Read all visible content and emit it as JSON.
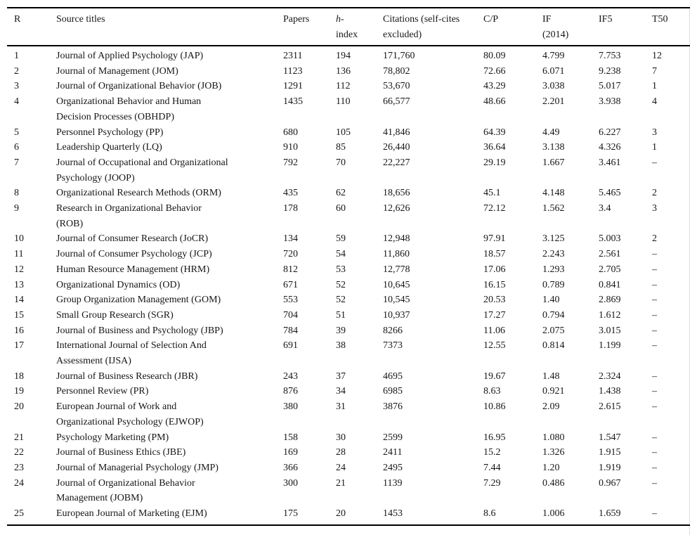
{
  "colors": {
    "background": "#ffffff",
    "text": "#161616",
    "rule": "#000000",
    "page_edge_line": "#dedede"
  },
  "table": {
    "columns": {
      "r": "R",
      "source": "Source titles",
      "papers": "Papers",
      "h_italic": "h",
      "h_hyphen": "-",
      "h_line2": "index",
      "citations": "Citations (self-cites\nexcluded)",
      "cp": "C/P",
      "if": "IF\n(2014)",
      "if5": "IF5",
      "t50": "T50"
    },
    "rows": [
      {
        "r": "1",
        "title": "Journal of Applied Psychology (JAP)",
        "papers": "2311",
        "h": "194",
        "citations": "171,760",
        "cp": "80.09",
        "if": "4.799",
        "if5": "7.753",
        "t50": "12"
      },
      {
        "r": "2",
        "title": "Journal of Management (JOM)",
        "papers": "1123",
        "h": "136",
        "citations": "78,802",
        "cp": "72.66",
        "if": "6.071",
        "if5": "9.238",
        "t50": "7"
      },
      {
        "r": "3",
        "title": "Journal of Organizational Behavior (JOB)",
        "papers": "1291",
        "h": "112",
        "citations": "53,670",
        "cp": "43.29",
        "if": "3.038",
        "if5": "5.017",
        "t50": "1"
      },
      {
        "r": "4",
        "title": "Organizational Behavior and Human\nDecision Processes (OBHDP)",
        "papers": "1435",
        "h": "110",
        "citations": "66,577",
        "cp": "48.66",
        "if": "2.201",
        "if5": "3.938",
        "t50": "4"
      },
      {
        "r": "5",
        "title": "Personnel Psychology (PP)",
        "papers": "680",
        "h": "105",
        "citations": "41,846",
        "cp": "64.39",
        "if": "4.49",
        "if5": "6.227",
        "t50": "3"
      },
      {
        "r": "6",
        "title": "Leadership Quarterly (LQ)",
        "papers": "910",
        "h": "85",
        "citations": "26,440",
        "cp": "36.64",
        "if": "3.138",
        "if5": "4.326",
        "t50": "1"
      },
      {
        "r": "7",
        "title": "Journal of Occupational and Organizational\nPsychology (JOOP)",
        "papers": "792",
        "h": "70",
        "citations": "22,227",
        "cp": "29.19",
        "if": "1.667",
        "if5": "3.461",
        "t50": "–"
      },
      {
        "r": "8",
        "title": "Organizational Research Methods (ORM)",
        "papers": "435",
        "h": "62",
        "citations": "18,656",
        "cp": "45.1",
        "if": "4.148",
        "if5": "5.465",
        "t50": "2"
      },
      {
        "r": "9",
        "title": "Research in Organizational Behavior\n(ROB)",
        "papers": "178",
        "h": "60",
        "citations": "12,626",
        "cp": "72.12",
        "if": "1.562",
        "if5": "3.4",
        "t50": "3"
      },
      {
        "r": "10",
        "title": "Journal of Consumer Research (JoCR)",
        "papers": "134",
        "h": "59",
        "citations": "12,948",
        "cp": "97.91",
        "if": "3.125",
        "if5": "5.003",
        "t50": "2"
      },
      {
        "r": "11",
        "title": "Journal of Consumer Psychology (JCP)",
        "papers": "720",
        "h": "54",
        "citations": "11,860",
        "cp": "18.57",
        "if": "2.243",
        "if5": "2.561",
        "t50": "–"
      },
      {
        "r": "12",
        "title": "Human Resource Management (HRM)",
        "papers": "812",
        "h": "53",
        "citations": "12,778",
        "cp": "17.06",
        "if": "1.293",
        "if5": "2.705",
        "t50": "–"
      },
      {
        "r": "13",
        "title": "Organizational Dynamics (OD)",
        "papers": "671",
        "h": "52",
        "citations": "10,645",
        "cp": "16.15",
        "if": "0.789",
        "if5": "0.841",
        "t50": "–"
      },
      {
        "r": "14",
        "title": "Group Organization Management (GOM)",
        "papers": "553",
        "h": "52",
        "citations": "10,545",
        "cp": "20.53",
        "if": "1.40",
        "if5": "2.869",
        "t50": "–"
      },
      {
        "r": "15",
        "title": "Small Group Research (SGR)",
        "papers": "704",
        "h": "51",
        "citations": "10,937",
        "cp": "17.27",
        "if": "0.794",
        "if5": "1.612",
        "t50": "–"
      },
      {
        "r": "16",
        "title": "Journal of Business and Psychology (JBP)",
        "papers": "784",
        "h": "39",
        "citations": "8266",
        "cp": "11.06",
        "if": "2.075",
        "if5": "3.015",
        "t50": "–"
      },
      {
        "r": "17",
        "title": "International Journal of Selection And\nAssessment (IJSA)",
        "papers": "691",
        "h": "38",
        "citations": "7373",
        "cp": "12.55",
        "if": "0.814",
        "if5": "1.199",
        "t50": "–"
      },
      {
        "r": "18",
        "title": "Journal of Business Research (JBR)",
        "papers": "243",
        "h": "37",
        "citations": "4695",
        "cp": "19.67",
        "if": "1.48",
        "if5": "2.324",
        "t50": "–"
      },
      {
        "r": "19",
        "title": "Personnel Review (PR)",
        "papers": "876",
        "h": "34",
        "citations": "6985",
        "cp": "8.63",
        "if": "0.921",
        "if5": "1.438",
        "t50": "–"
      },
      {
        "r": "20",
        "title": "European Journal of Work and\nOrganizational Psychology (EJWOP)",
        "papers": "380",
        "h": "31",
        "citations": "3876",
        "cp": "10.86",
        "if": "2.09",
        "if5": "2.615",
        "t50": "–"
      },
      {
        "r": "21",
        "title": "Psychology Marketing (PM)",
        "papers": "158",
        "h": "30",
        "citations": "2599",
        "cp": "16.95",
        "if": "1.080",
        "if5": "1.547",
        "t50": "–"
      },
      {
        "r": "22",
        "title": "Journal of Business Ethics (JBE)",
        "papers": "169",
        "h": "28",
        "citations": "2411",
        "cp": "15.2",
        "if": "1.326",
        "if5": "1.915",
        "t50": "–"
      },
      {
        "r": "23",
        "title": "Journal of Managerial Psychology (JMP)",
        "papers": "366",
        "h": "24",
        "citations": "2495",
        "cp": "7.44",
        "if": "1.20",
        "if5": "1.919",
        "t50": "–"
      },
      {
        "r": "24",
        "title": "Journal of Organizational Behavior\nManagement (JOBM)",
        "papers": "300",
        "h": "21",
        "citations": "1139",
        "cp": "7.29",
        "if": "0.486",
        "if5": "0.967",
        "t50": "–"
      },
      {
        "r": "25",
        "title": "European Journal of Marketing (EJM)",
        "papers": "175",
        "h": "20",
        "citations": "1453",
        "cp": "8.6",
        "if": "1.006",
        "if5": "1.659",
        "t50": "–"
      }
    ]
  }
}
